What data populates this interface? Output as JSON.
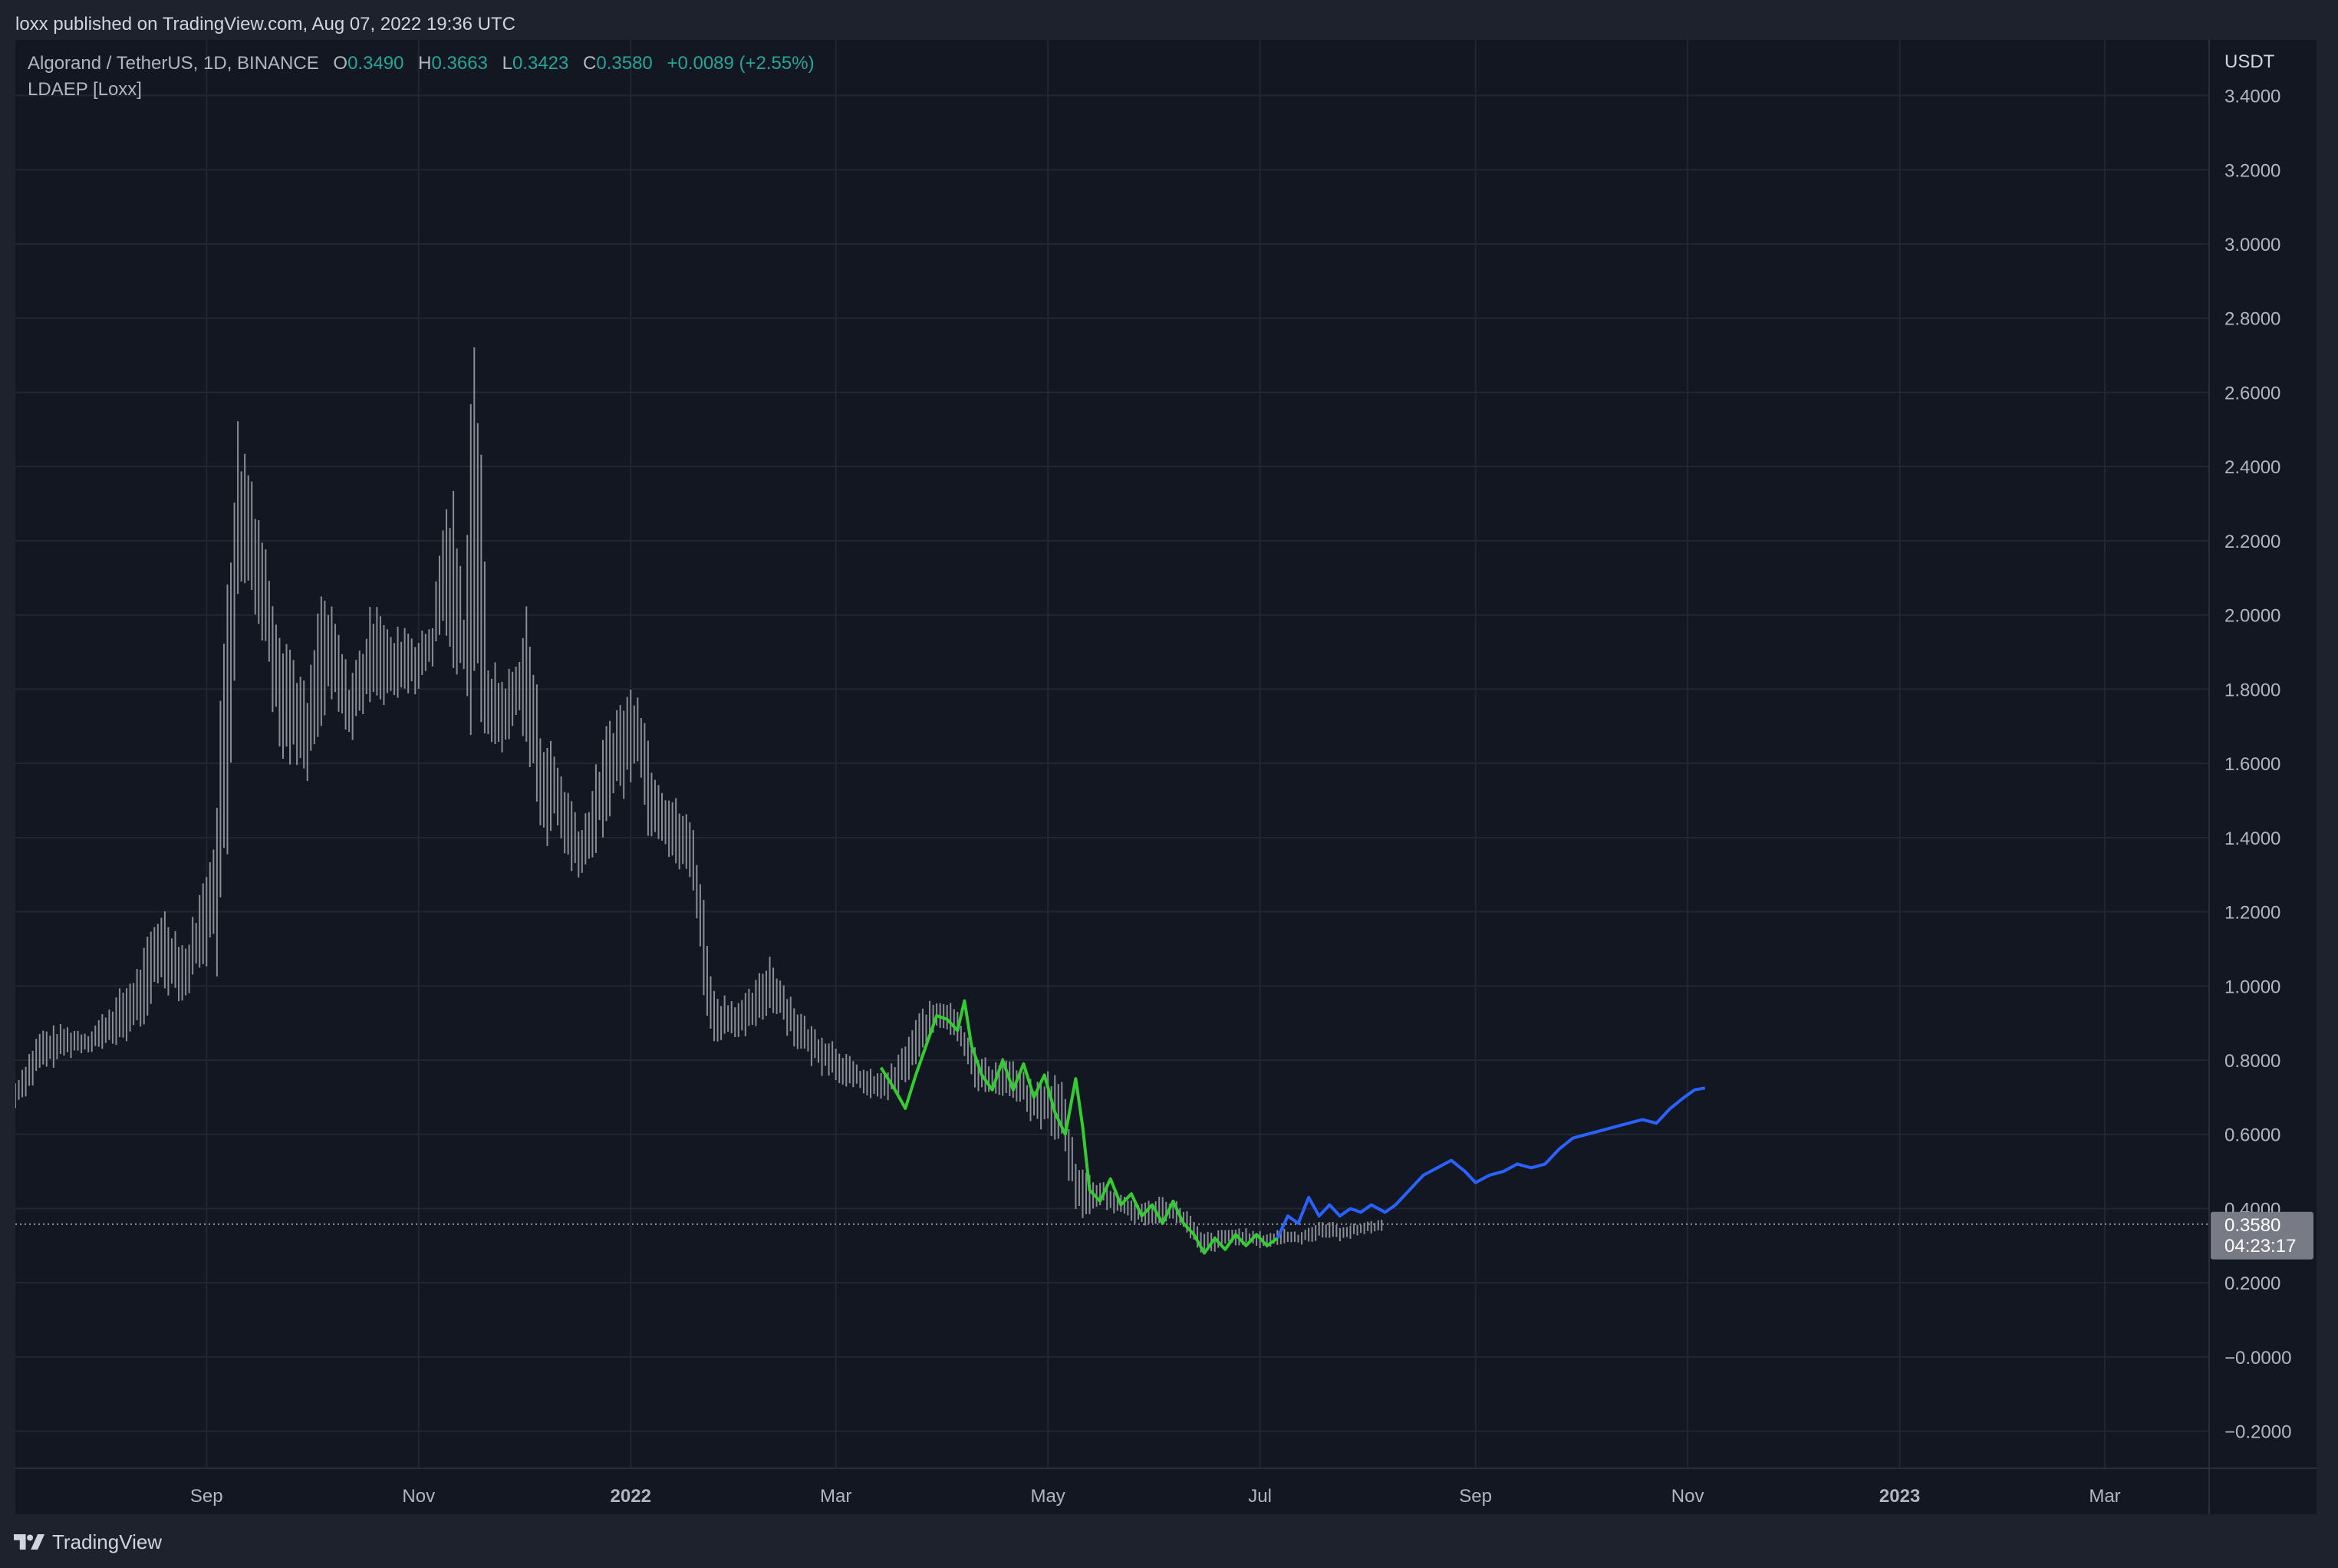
{
  "publish_line": "loxx published on TradingView.com, Aug 07, 2022 19:36 UTC",
  "legend": {
    "symbol": "Algorand / TetherUS, 1D, BINANCE",
    "open_label": "O",
    "open": "0.3490",
    "high_label": "H",
    "high": "0.3663",
    "low_label": "L",
    "low": "0.3423",
    "close_label": "C",
    "close": "0.3580",
    "change": "+0.0089 (+2.55%)",
    "indicator": "LDAEP [Loxx]"
  },
  "price_axis": {
    "unit": "USDT",
    "current_price": "0.3580",
    "countdown": "04:23:17"
  },
  "footer": {
    "brand": "TradingView"
  },
  "colors": {
    "background": "#131722",
    "candles": "#8a8d94",
    "indicator_history": "#33cc33",
    "indicator_projection": "#2962ff",
    "change_text": "#26a69a"
  },
  "chart_data": {
    "type": "line",
    "title": "Algorand / TetherUS, 1D, BINANCE",
    "xlabel": "",
    "ylabel": "USDT",
    "y_ticks": [
      -0.2,
      0.0,
      0.2,
      0.4,
      0.6,
      0.8,
      1.0,
      1.2,
      1.4,
      1.6,
      1.8,
      2.0,
      2.2,
      2.4,
      2.6,
      2.8,
      3.0,
      3.2,
      3.4
    ],
    "y_tick_labels": [
      "−0.2000",
      "−0.0000",
      "0.2000",
      "0.4000",
      "0.6000",
      "0.8000",
      "1.0000",
      "1.2000",
      "1.4000",
      "1.6000",
      "1.8000",
      "2.0000",
      "2.2000",
      "2.4000",
      "2.6000",
      "2.8000",
      "3.0000",
      "3.2000",
      "3.4000"
    ],
    "ylim": [
      -0.3,
      3.55
    ],
    "xlim": [
      "2021-07-08",
      "2023-03-31"
    ],
    "x_ticks": [
      {
        "date": "2021-09-01",
        "label": "Sep",
        "bold": false
      },
      {
        "date": "2021-11-01",
        "label": "Nov",
        "bold": false
      },
      {
        "date": "2022-01-01",
        "label": "2022",
        "bold": true
      },
      {
        "date": "2022-03-01",
        "label": "Mar",
        "bold": false
      },
      {
        "date": "2022-05-01",
        "label": "May",
        "bold": false
      },
      {
        "date": "2022-07-01",
        "label": "Jul",
        "bold": false
      },
      {
        "date": "2022-09-01",
        "label": "Sep",
        "bold": false
      },
      {
        "date": "2022-11-01",
        "label": "Nov",
        "bold": false
      },
      {
        "date": "2023-01-01",
        "label": "2023",
        "bold": true
      },
      {
        "date": "2023-03-01",
        "label": "Mar",
        "bold": false
      }
    ],
    "grid": true,
    "current_price": 0.358,
    "series": [
      {
        "kind": "ohlc",
        "points": [
          {
            "x": "2021-07-08",
            "high": 0.75,
            "low": 0.66
          },
          {
            "x": "2021-07-15",
            "high": 0.89,
            "low": 0.75
          },
          {
            "x": "2021-07-22",
            "high": 0.9,
            "low": 0.8
          },
          {
            "x": "2021-07-29",
            "high": 0.88,
            "low": 0.82
          },
          {
            "x": "2021-08-05",
            "high": 0.97,
            "low": 0.82
          },
          {
            "x": "2021-08-12",
            "high": 1.06,
            "low": 0.86
          },
          {
            "x": "2021-08-19",
            "high": 1.24,
            "low": 0.98
          },
          {
            "x": "2021-08-26",
            "high": 1.12,
            "low": 0.95
          },
          {
            "x": "2021-08-31",
            "high": 1.3,
            "low": 1.05
          },
          {
            "x": "2021-09-04",
            "high": 1.55,
            "low": 1.0
          },
          {
            "x": "2021-09-07",
            "high": 2.3,
            "low": 1.2
          },
          {
            "x": "2021-09-10",
            "high": 2.56,
            "low": 1.9
          },
          {
            "x": "2021-09-14",
            "high": 2.42,
            "low": 2.0
          },
          {
            "x": "2021-09-18",
            "high": 2.2,
            "low": 1.9
          },
          {
            "x": "2021-09-22",
            "high": 2.05,
            "low": 1.55
          },
          {
            "x": "2021-09-26",
            "high": 1.92,
            "low": 1.6
          },
          {
            "x": "2021-09-30",
            "high": 1.8,
            "low": 1.55
          },
          {
            "x": "2021-10-04",
            "high": 2.1,
            "low": 1.7
          },
          {
            "x": "2021-10-08",
            "high": 2.0,
            "low": 1.75
          },
          {
            "x": "2021-10-12",
            "high": 1.85,
            "low": 1.65
          },
          {
            "x": "2021-10-16",
            "high": 1.95,
            "low": 1.7
          },
          {
            "x": "2021-10-20",
            "high": 2.1,
            "low": 1.75
          },
          {
            "x": "2021-10-24",
            "high": 1.95,
            "low": 1.75
          },
          {
            "x": "2021-10-28",
            "high": 2.0,
            "low": 1.75
          },
          {
            "x": "2021-11-01",
            "high": 1.95,
            "low": 1.78
          },
          {
            "x": "2021-11-05",
            "high": 2.0,
            "low": 1.85
          },
          {
            "x": "2021-11-08",
            "high": 2.3,
            "low": 1.9
          },
          {
            "x": "2021-11-11",
            "high": 2.35,
            "low": 1.85
          },
          {
            "x": "2021-11-14",
            "high": 2.05,
            "low": 1.8
          },
          {
            "x": "2021-11-17",
            "high": 3.0,
            "low": 1.6
          },
          {
            "x": "2021-11-21",
            "high": 1.9,
            "low": 1.65
          },
          {
            "x": "2021-11-25",
            "high": 1.85,
            "low": 1.6
          },
          {
            "x": "2021-11-29",
            "high": 1.88,
            "low": 1.7
          },
          {
            "x": "2021-12-02",
            "high": 2.05,
            "low": 1.65
          },
          {
            "x": "2021-12-06",
            "high": 1.75,
            "low": 1.35
          },
          {
            "x": "2021-12-10",
            "high": 1.65,
            "low": 1.4
          },
          {
            "x": "2021-12-14",
            "high": 1.55,
            "low": 1.3
          },
          {
            "x": "2021-12-18",
            "high": 1.45,
            "low": 1.25
          },
          {
            "x": "2021-12-22",
            "high": 1.6,
            "low": 1.35
          },
          {
            "x": "2021-12-26",
            "high": 1.75,
            "low": 1.45
          },
          {
            "x": "2021-12-30",
            "high": 1.8,
            "low": 1.5
          },
          {
            "x": "2022-01-03",
            "high": 1.85,
            "low": 1.55
          },
          {
            "x": "2022-01-07",
            "high": 1.65,
            "low": 1.35
          },
          {
            "x": "2022-01-11",
            "high": 1.55,
            "low": 1.35
          },
          {
            "x": "2022-01-15",
            "high": 1.5,
            "low": 1.3
          },
          {
            "x": "2022-01-19",
            "high": 1.45,
            "low": 1.25
          },
          {
            "x": "2022-01-22",
            "high": 1.25,
            "low": 0.95
          },
          {
            "x": "2022-01-25",
            "high": 1.0,
            "low": 0.8
          },
          {
            "x": "2022-01-29",
            "high": 0.98,
            "low": 0.86
          },
          {
            "x": "2022-02-02",
            "high": 0.97,
            "low": 0.85
          },
          {
            "x": "2022-02-06",
            "high": 1.02,
            "low": 0.88
          },
          {
            "x": "2022-02-10",
            "high": 1.1,
            "low": 0.92
          },
          {
            "x": "2022-02-14",
            "high": 1.02,
            "low": 0.88
          },
          {
            "x": "2022-02-18",
            "high": 0.95,
            "low": 0.82
          },
          {
            "x": "2022-02-22",
            "high": 0.9,
            "low": 0.78
          },
          {
            "x": "2022-02-26",
            "high": 0.88,
            "low": 0.75
          },
          {
            "x": "2022-03-02",
            "high": 0.85,
            "low": 0.72
          },
          {
            "x": "2022-03-06",
            "high": 0.8,
            "low": 0.72
          },
          {
            "x": "2022-03-10",
            "high": 0.78,
            "low": 0.7
          },
          {
            "x": "2022-03-14",
            "high": 0.77,
            "low": 0.68
          },
          {
            "x": "2022-03-18",
            "high": 0.8,
            "low": 0.7
          },
          {
            "x": "2022-03-22",
            "high": 0.88,
            "low": 0.74
          },
          {
            "x": "2022-03-26",
            "high": 0.95,
            "low": 0.82
          },
          {
            "x": "2022-03-30",
            "high": 0.97,
            "low": 0.87
          },
          {
            "x": "2022-04-03",
            "high": 0.98,
            "low": 0.85
          },
          {
            "x": "2022-04-07",
            "high": 0.9,
            "low": 0.8
          },
          {
            "x": "2022-04-11",
            "high": 0.82,
            "low": 0.7
          },
          {
            "x": "2022-04-15",
            "high": 0.8,
            "low": 0.7
          },
          {
            "x": "2022-04-19",
            "high": 0.82,
            "low": 0.7
          },
          {
            "x": "2022-04-23",
            "high": 0.78,
            "low": 0.68
          },
          {
            "x": "2022-04-27",
            "high": 0.74,
            "low": 0.62
          },
          {
            "x": "2022-05-01",
            "high": 0.78,
            "low": 0.6
          },
          {
            "x": "2022-05-05",
            "high": 0.76,
            "low": 0.55
          },
          {
            "x": "2022-05-09",
            "high": 0.56,
            "low": 0.38
          },
          {
            "x": "2022-05-13",
            "high": 0.5,
            "low": 0.36
          },
          {
            "x": "2022-05-17",
            "high": 0.48,
            "low": 0.4
          },
          {
            "x": "2022-05-21",
            "high": 0.44,
            "low": 0.38
          },
          {
            "x": "2022-05-25",
            "high": 0.43,
            "low": 0.36
          },
          {
            "x": "2022-05-29",
            "high": 0.42,
            "low": 0.35
          },
          {
            "x": "2022-06-02",
            "high": 0.44,
            "low": 0.36
          },
          {
            "x": "2022-06-06",
            "high": 0.43,
            "low": 0.36
          },
          {
            "x": "2022-06-10",
            "high": 0.4,
            "low": 0.33
          },
          {
            "x": "2022-06-14",
            "high": 0.34,
            "low": 0.27
          },
          {
            "x": "2022-06-18",
            "high": 0.34,
            "low": 0.28
          },
          {
            "x": "2022-06-22",
            "high": 0.35,
            "low": 0.3
          },
          {
            "x": "2022-06-26",
            "high": 0.35,
            "low": 0.3
          },
          {
            "x": "2022-06-30",
            "high": 0.34,
            "low": 0.29
          },
          {
            "x": "2022-07-04",
            "high": 0.34,
            "low": 0.29
          },
          {
            "x": "2022-07-08",
            "high": 0.35,
            "low": 0.3
          },
          {
            "x": "2022-07-12",
            "high": 0.34,
            "low": 0.3
          },
          {
            "x": "2022-07-16",
            "high": 0.36,
            "low": 0.31
          },
          {
            "x": "2022-07-20",
            "high": 0.37,
            "low": 0.32
          },
          {
            "x": "2022-07-24",
            "high": 0.36,
            "low": 0.31
          },
          {
            "x": "2022-07-28",
            "high": 0.36,
            "low": 0.32
          },
          {
            "x": "2022-08-01",
            "high": 0.37,
            "low": 0.33
          },
          {
            "x": "2022-08-05",
            "high": 0.37,
            "low": 0.34
          }
        ]
      },
      {
        "name": "LDAEP [Loxx]",
        "kind": "line",
        "segment": "history",
        "points": [
          {
            "x": "2022-03-14",
            "y": 0.78
          },
          {
            "x": "2022-03-18",
            "y": 0.72
          },
          {
            "x": "2022-03-21",
            "y": 0.67
          },
          {
            "x": "2022-03-24",
            "y": 0.76
          },
          {
            "x": "2022-03-27",
            "y": 0.84
          },
          {
            "x": "2022-03-30",
            "y": 0.92
          },
          {
            "x": "2022-04-02",
            "y": 0.91
          },
          {
            "x": "2022-04-05",
            "y": 0.88
          },
          {
            "x": "2022-04-07",
            "y": 0.96
          },
          {
            "x": "2022-04-09",
            "y": 0.84
          },
          {
            "x": "2022-04-12",
            "y": 0.76
          },
          {
            "x": "2022-04-15",
            "y": 0.72
          },
          {
            "x": "2022-04-18",
            "y": 0.8
          },
          {
            "x": "2022-04-21",
            "y": 0.72
          },
          {
            "x": "2022-04-24",
            "y": 0.79
          },
          {
            "x": "2022-04-27",
            "y": 0.7
          },
          {
            "x": "2022-04-30",
            "y": 0.76
          },
          {
            "x": "2022-05-03",
            "y": 0.66
          },
          {
            "x": "2022-05-06",
            "y": 0.6
          },
          {
            "x": "2022-05-09",
            "y": 0.75
          },
          {
            "x": "2022-05-11",
            "y": 0.62
          },
          {
            "x": "2022-05-13",
            "y": 0.45
          },
          {
            "x": "2022-05-16",
            "y": 0.42
          },
          {
            "x": "2022-05-19",
            "y": 0.48
          },
          {
            "x": "2022-05-22",
            "y": 0.41
          },
          {
            "x": "2022-05-25",
            "y": 0.44
          },
          {
            "x": "2022-05-28",
            "y": 0.38
          },
          {
            "x": "2022-05-31",
            "y": 0.41
          },
          {
            "x": "2022-06-03",
            "y": 0.36
          },
          {
            "x": "2022-06-06",
            "y": 0.42
          },
          {
            "x": "2022-06-09",
            "y": 0.36
          },
          {
            "x": "2022-06-12",
            "y": 0.33
          },
          {
            "x": "2022-06-15",
            "y": 0.28
          },
          {
            "x": "2022-06-18",
            "y": 0.32
          },
          {
            "x": "2022-06-21",
            "y": 0.29
          },
          {
            "x": "2022-06-24",
            "y": 0.33
          },
          {
            "x": "2022-06-27",
            "y": 0.3
          },
          {
            "x": "2022-06-30",
            "y": 0.33
          },
          {
            "x": "2022-07-03",
            "y": 0.3
          },
          {
            "x": "2022-07-06",
            "y": 0.32
          }
        ]
      },
      {
        "name": "LDAEP [Loxx]",
        "kind": "line",
        "segment": "projection",
        "points": [
          {
            "x": "2022-07-06",
            "y": 0.32
          },
          {
            "x": "2022-07-09",
            "y": 0.38
          },
          {
            "x": "2022-07-12",
            "y": 0.36
          },
          {
            "x": "2022-07-15",
            "y": 0.43
          },
          {
            "x": "2022-07-18",
            "y": 0.38
          },
          {
            "x": "2022-07-21",
            "y": 0.41
          },
          {
            "x": "2022-07-24",
            "y": 0.38
          },
          {
            "x": "2022-07-27",
            "y": 0.4
          },
          {
            "x": "2022-07-30",
            "y": 0.39
          },
          {
            "x": "2022-08-02",
            "y": 0.41
          },
          {
            "x": "2022-08-06",
            "y": 0.39
          },
          {
            "x": "2022-08-09",
            "y": 0.41
          },
          {
            "x": "2022-08-13",
            "y": 0.45
          },
          {
            "x": "2022-08-17",
            "y": 0.49
          },
          {
            "x": "2022-08-21",
            "y": 0.51
          },
          {
            "x": "2022-08-25",
            "y": 0.53
          },
          {
            "x": "2022-08-29",
            "y": 0.5
          },
          {
            "x": "2022-09-01",
            "y": 0.47
          },
          {
            "x": "2022-09-05",
            "y": 0.49
          },
          {
            "x": "2022-09-09",
            "y": 0.5
          },
          {
            "x": "2022-09-13",
            "y": 0.52
          },
          {
            "x": "2022-09-17",
            "y": 0.51
          },
          {
            "x": "2022-09-21",
            "y": 0.52
          },
          {
            "x": "2022-09-25",
            "y": 0.56
          },
          {
            "x": "2022-09-29",
            "y": 0.59
          },
          {
            "x": "2022-10-03",
            "y": 0.6
          },
          {
            "x": "2022-10-07",
            "y": 0.61
          },
          {
            "x": "2022-10-11",
            "y": 0.62
          },
          {
            "x": "2022-10-15",
            "y": 0.63
          },
          {
            "x": "2022-10-19",
            "y": 0.64
          },
          {
            "x": "2022-10-23",
            "y": 0.63
          },
          {
            "x": "2022-10-27",
            "y": 0.67
          },
          {
            "x": "2022-10-31",
            "y": 0.7
          },
          {
            "x": "2022-11-03",
            "y": 0.72
          },
          {
            "x": "2022-11-06",
            "y": 0.725
          }
        ]
      }
    ]
  }
}
